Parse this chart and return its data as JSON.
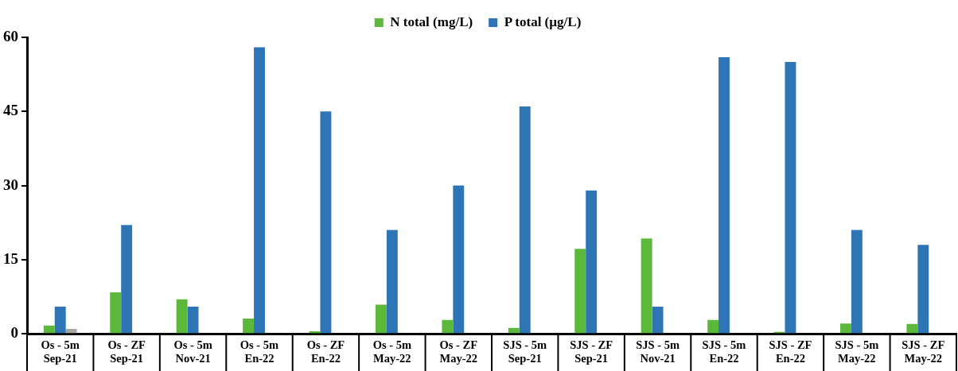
{
  "chart_data": {
    "type": "bar",
    "categories": [
      "Os - 5m\nSep-21",
      "Os - ZF\nSep-21",
      "Os - 5m\nNov-21",
      "Os - 5m\nEn-22",
      "Os - ZF\nEn-22",
      "Os - 5m\nMay-22",
      "Os - ZF\nMay-22",
      "SJS - 5m\nSep-21",
      "SJS - ZF\nSep-21",
      "SJS - 5m\nNov-21",
      "SJS - 5m\nEn-22",
      "SJS - ZF\nEn-22",
      "SJS - 5m\nMay-22",
      "SJS - ZF\nMay-22"
    ],
    "series": [
      {
        "name": "N total (mg/L)",
        "color": "#5bb83a",
        "values": [
          1.7,
          8.4,
          7.0,
          3.1,
          0.5,
          5.9,
          2.8,
          1.2,
          17.2,
          19.3,
          2.8,
          0.4,
          2.1,
          2.0
        ]
      },
      {
        "name": "P total (µg/L)",
        "color": "#2e75b6",
        "values": [
          5.5,
          22,
          5.5,
          58,
          45,
          21,
          30,
          46,
          29,
          5.5,
          56,
          55,
          21,
          18
        ]
      },
      {
        "color": "#a6a6a6",
        "values": [
          1.0,
          null,
          null,
          null,
          null,
          null,
          null,
          null,
          null,
          null,
          null,
          null,
          null,
          null
        ]
      }
    ],
    "ylim": [
      0,
      60
    ],
    "yticks": [
      0,
      15,
      30,
      45,
      60
    ],
    "grid": false,
    "legend": "top"
  }
}
